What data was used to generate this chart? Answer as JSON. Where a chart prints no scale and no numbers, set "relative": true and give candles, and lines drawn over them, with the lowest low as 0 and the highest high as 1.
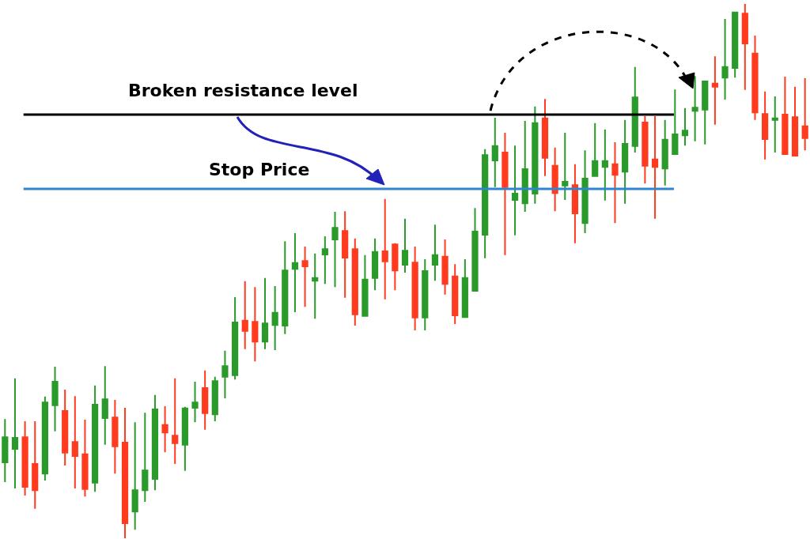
{
  "chart_data": {
    "type": "candlestick",
    "relative": true,
    "legend": false,
    "categories": [
      null,
      null,
      null,
      null,
      null,
      null,
      null,
      null,
      null,
      null,
      null,
      null,
      null,
      null,
      null,
      null,
      null,
      null,
      null,
      null,
      null,
      null,
      null,
      null,
      null,
      null,
      null,
      null,
      null,
      null,
      null,
      null,
      null,
      null,
      null,
      null,
      null,
      null,
      null,
      null,
      null,
      null,
      null,
      null,
      null,
      null,
      null,
      null,
      null,
      null,
      null,
      null,
      null,
      null,
      null,
      null,
      null,
      null,
      null,
      null,
      null,
      null,
      null,
      null,
      null,
      null,
      null,
      null,
      null,
      null,
      null,
      null,
      null,
      null,
      null,
      null,
      null,
      null,
      null,
      null,
      null
    ],
    "colors": [
      "#2a9a2a",
      "#2a9a2a",
      "#ff3b1f",
      "#ff3b1f",
      "#2a9a2a",
      "#2a9a2a",
      "#ff3b1f",
      "#ff3b1f",
      "#ff3b1f",
      "#2a9a2a",
      "#2a9a2a",
      "#ff3b1f",
      "#ff3b1f",
      "#2a9a2a",
      "#2a9a2a",
      "#2a9a2a",
      "#ff3b1f",
      "#ff3b1f",
      "#2a9a2a",
      "#2a9a2a",
      "#ff3b1f",
      "#2a9a2a",
      "#2a9a2a",
      "#2a9a2a",
      "#ff3b1f",
      "#ff3b1f",
      "#2a9a2a",
      "#2a9a2a",
      "#2a9a2a",
      "#2a9a2a",
      "#ff3b1f",
      "#2a9a2a",
      "#2a9a2a",
      "#2a9a2a",
      "#ff3b1f",
      "#ff3b1f",
      "#2a9a2a",
      "#2a9a2a",
      "#ff3b1f",
      "#ff3b1f",
      "#2a9a2a",
      "#ff3b1f",
      "#2a9a2a",
      "#2a9a2a",
      "#ff3b1f",
      "#ff3b1f",
      "#2a9a2a",
      "#2a9a2a",
      "#2a9a2a",
      "#2a9a2a",
      "#ff3b1f",
      "#2a9a2a",
      "#2a9a2a",
      "#2a9a2a",
      "#ff3b1f",
      "#ff3b1f",
      "#2a9a2a",
      "#ff3b1f",
      "#2a9a2a",
      "#2a9a2a",
      "#2a9a2a",
      "#ff3b1f",
      "#2a9a2a",
      "#2a9a2a",
      "#ff3b1f",
      "#ff3b1f",
      "#2a9a2a",
      "#2a9a2a",
      "#2a9a2a",
      "#2a9a2a",
      "#2a9a2a",
      "#ff3b1f",
      "#2a9a2a",
      "#2a9a2a",
      "#ff3b1f",
      "#ff3b1f",
      "#ff3b1f",
      "#2a9a2a",
      "#ff3b1f",
      "#ff3b1f",
      "#ff3b1f"
    ],
    "ohlc": [
      [
        0.142,
        0.223,
        0.105,
        0.189
      ],
      [
        0.167,
        0.299,
        0.093,
        0.188
      ],
      [
        0.189,
        0.219,
        0.08,
        0.096
      ],
      [
        0.139,
        0.219,
        0.055,
        0.09
      ],
      [
        0.121,
        0.265,
        0.108,
        0.254
      ],
      [
        0.249,
        0.321,
        0.2,
        0.293
      ],
      [
        0.238,
        0.278,
        0.136,
        0.16
      ],
      [
        0.18,
        0.266,
        0.093,
        0.154
      ],
      [
        0.157,
        0.222,
        0.078,
        0.092
      ],
      [
        0.104,
        0.286,
        0.087,
        0.25
      ],
      [
        0.225,
        0.322,
        0.175,
        0.26
      ],
      [
        0.226,
        0.259,
        0.121,
        0.172
      ],
      [
        0.179,
        0.244,
        0.0,
        0.028
      ],
      [
        0.05,
        0.217,
        0.016,
        0.09
      ],
      [
        0.09,
        0.235,
        0.068,
        0.127
      ],
      [
        0.111,
        0.268,
        0.09,
        0.241
      ],
      [
        0.212,
        0.247,
        0.161,
        0.198
      ],
      [
        0.192,
        0.299,
        0.139,
        0.178
      ],
      [
        0.175,
        0.246,
        0.126,
        0.243
      ],
      [
        0.244,
        0.293,
        0.217,
        0.254
      ],
      [
        0.281,
        0.314,
        0.203,
        0.234
      ],
      [
        0.232,
        0.302,
        0.219,
        0.294
      ],
      [
        0.302,
        0.351,
        0.262,
        0.322
      ],
      [
        0.305,
        0.451,
        0.297,
        0.404
      ],
      [
        0.407,
        0.481,
        0.354,
        0.388
      ],
      [
        0.405,
        0.47,
        0.331,
        0.368
      ],
      [
        0.368,
        0.487,
        0.354,
        0.402
      ],
      [
        0.399,
        0.472,
        0.352,
        0.422
      ],
      [
        0.398,
        0.556,
        0.382,
        0.501
      ],
      [
        0.504,
        0.571,
        0.423,
        0.515
      ],
      [
        0.519,
        0.546,
        0.433,
        0.509
      ],
      [
        0.482,
        0.533,
        0.411,
        0.487
      ],
      [
        0.531,
        0.565,
        0.476,
        0.541
      ],
      [
        0.559,
        0.611,
        0.47,
        0.581
      ],
      [
        0.575,
        0.612,
        0.45,
        0.525
      ],
      [
        0.541,
        0.561,
        0.398,
        0.419
      ],
      [
        0.416,
        0.53,
        0.416,
        0.484
      ],
      [
        0.487,
        0.561,
        0.464,
        0.536
      ],
      [
        0.537,
        0.635,
        0.447,
        0.518
      ],
      [
        0.55,
        0.552,
        0.464,
        0.501
      ],
      [
        0.512,
        0.598,
        0.497,
        0.538
      ],
      [
        0.516,
        0.546,
        0.389,
        0.413
      ],
      [
        0.413,
        0.522,
        0.389,
        0.5
      ],
      [
        0.512,
        0.587,
        0.482,
        0.53
      ],
      [
        0.527,
        0.559,
        0.456,
        0.476
      ],
      [
        0.49,
        0.513,
        0.401,
        0.417
      ],
      [
        0.414,
        0.522,
        0.414,
        0.487
      ],
      [
        0.463,
        0.618,
        0.463,
        0.574
      ],
      [
        0.568,
        0.728,
        0.524,
        0.717
      ],
      [
        0.707,
        0.787,
        0.657,
        0.734
      ],
      [
        0.722,
        0.759,
        0.53,
        0.657
      ],
      [
        0.633,
        0.735,
        0.567,
        0.645
      ],
      [
        0.627,
        0.781,
        0.611,
        0.691
      ],
      [
        0.645,
        0.808,
        0.626,
        0.777
      ],
      [
        0.786,
        0.822,
        0.678,
        0.712
      ],
      [
        0.697,
        0.731,
        0.612,
        0.646
      ],
      [
        0.66,
        0.759,
        0.633,
        0.667
      ],
      [
        0.661,
        0.7,
        0.552,
        0.608
      ],
      [
        0.59,
        0.726,
        0.571,
        0.673
      ],
      [
        0.678,
        0.777,
        0.678,
        0.706
      ],
      [
        0.695,
        0.765,
        0.632,
        0.706
      ],
      [
        0.7,
        0.741,
        0.59,
        0.68
      ],
      [
        0.686,
        0.783,
        0.626,
        0.738
      ],
      [
        0.734,
        0.882,
        0.722,
        0.825
      ],
      [
        0.778,
        0.79,
        0.664,
        0.697
      ],
      [
        0.709,
        0.79,
        0.598,
        0.695
      ],
      [
        0.692,
        0.783,
        0.66,
        0.746
      ],
      [
        0.719,
        0.84,
        0.719,
        0.756
      ],
      [
        0.754,
        0.805,
        0.735,
        0.763
      ],
      [
        0.8,
        0.865,
        0.743,
        0.806
      ],
      [
        0.802,
        0.855,
        0.737,
        0.855
      ],
      [
        0.851,
        0.902,
        0.774,
        0.845
      ],
      [
        0.862,
        0.972,
        0.821,
        0.882
      ],
      [
        0.88,
        0.984,
        0.862,
        0.984
      ],
      [
        0.982,
        1.0,
        0.839,
        0.926
      ],
      [
        0.907,
        0.941,
        0.783,
        0.797
      ],
      [
        0.794,
        0.836,
        0.709,
        0.747
      ],
      [
        0.783,
        0.827,
        0.722,
        0.786
      ],
      [
        0.793,
        0.864,
        0.719,
        0.719
      ],
      [
        0.788,
        0.845,
        0.716,
        0.716
      ],
      [
        0.771,
        0.861,
        0.726,
        0.749
      ]
    ],
    "ref_lines": [
      {
        "axis": "y",
        "value": 0.793,
        "label": "Broken resistance level",
        "color": "#000000"
      },
      {
        "axis": "y",
        "value": 0.654,
        "label": "Stop Price",
        "color": "#2f86d0"
      }
    ]
  }
}
